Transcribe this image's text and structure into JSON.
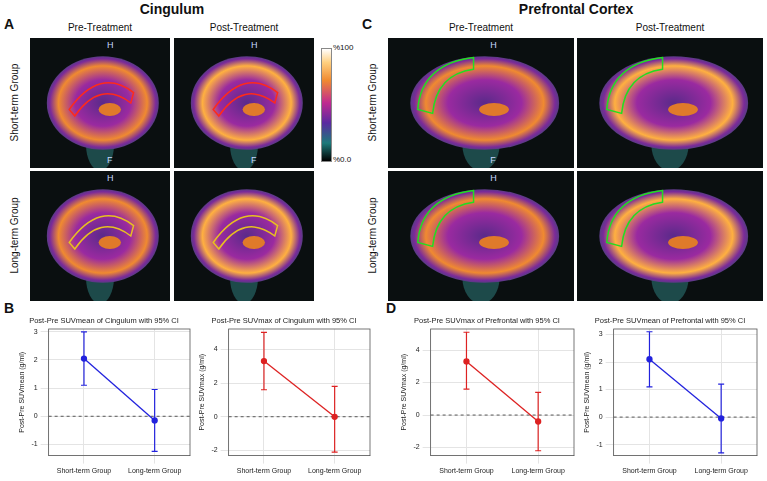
{
  "figure": {
    "image_panels": [
      {
        "letter": "A",
        "title": "Cingulum",
        "columns": [
          "Pre-Treatment",
          "Post-Treatment"
        ],
        "rows": [
          "Short-term Group",
          "Long-term Group"
        ],
        "roi_colors": [
          "#ff2a1a",
          "#e8c020"
        ],
        "roi": "cingulum",
        "markers": [
          [
            [
              "H",
              "F"
            ],
            [
              "H",
              "F"
            ]
          ],
          [
            [
              "H"
            ],
            []
          ]
        ]
      },
      {
        "letter": "C",
        "title": "Prefrontal Cortex",
        "columns": [
          "Pre-Treatment",
          "Post-Treatment"
        ],
        "rows": [
          "Short-term Group",
          "Long-term Group"
        ],
        "roi_colors": [
          "#22dd22",
          "#22dd22"
        ],
        "roi": "prefrontal",
        "markers": [
          [
            [
              "H",
              "F"
            ],
            []
          ],
          [
            [
              "H"
            ],
            []
          ]
        ]
      }
    ],
    "colorbar": {
      "range": [
        0,
        100
      ],
      "ticks": [
        {
          "value": 100,
          "label": "%100"
        },
        {
          "value": 0,
          "label": "%0.0"
        }
      ]
    },
    "chart_panel_letters": [
      "B",
      "D"
    ]
  },
  "chart_data": [
    {
      "type": "line",
      "title": "Post-Pre SUVmean of Cingulum with 95% CI",
      "y_label": "Post-Pre SUVmean (g/ml)",
      "categories": [
        "Short-term Group",
        "Long-term Group"
      ],
      "values": [
        2.05,
        -0.15
      ],
      "ci_low": [
        1.1,
        -1.25
      ],
      "ci_high": [
        3.0,
        0.95
      ],
      "reference_line": 0,
      "color": "#2222dd",
      "marker": "circle",
      "grid": true,
      "ylim": [
        -1.4,
        3.1
      ],
      "yticks": [
        -1,
        0,
        1,
        2,
        3
      ]
    },
    {
      "type": "line",
      "title": "Post-Pre SUVmax of Cingulum with 95% CI",
      "y_label": "Post-Pre SUVmax (g/ml)",
      "categories": [
        "Short-term Group",
        "Long-term Group"
      ],
      "values": [
        3.3,
        0.0
      ],
      "ci_low": [
        1.6,
        -2.1
      ],
      "ci_high": [
        5.0,
        1.8
      ],
      "reference_line": 0,
      "color": "#dd2222",
      "marker": "circle",
      "grid": true,
      "ylim": [
        -2.3,
        5.2
      ],
      "yticks": [
        -2,
        0,
        2,
        4
      ]
    },
    {
      "type": "line",
      "title": "Post-Pre SUVmax of Prefrontal with 95% CI",
      "y_label": "Post-Pre SUVmax (g/ml)",
      "categories": [
        "Short-term Group",
        "Long-term Group"
      ],
      "values": [
        3.3,
        -0.4
      ],
      "ci_low": [
        1.6,
        -2.2
      ],
      "ci_high": [
        5.1,
        1.4
      ],
      "reference_line": 0,
      "color": "#dd2222",
      "marker": "circle",
      "grid": true,
      "ylim": [
        -2.5,
        5.3
      ],
      "yticks": [
        -2,
        0,
        2,
        4
      ]
    },
    {
      "type": "line",
      "title": "Post-Pre SUVmean of Prefrontal with 95% CI",
      "y_label": "Post-Pre SUVmean (g/ml)",
      "categories": [
        "Short-term Group",
        "Long-term Group"
      ],
      "values": [
        2.1,
        -0.05
      ],
      "ci_low": [
        1.1,
        -1.3
      ],
      "ci_high": [
        3.1,
        1.2
      ],
      "reference_line": 0,
      "color": "#2222dd",
      "marker": "circle",
      "grid": true,
      "ylim": [
        -1.4,
        3.2
      ],
      "yticks": [
        -1,
        0,
        1,
        2,
        3
      ]
    }
  ]
}
